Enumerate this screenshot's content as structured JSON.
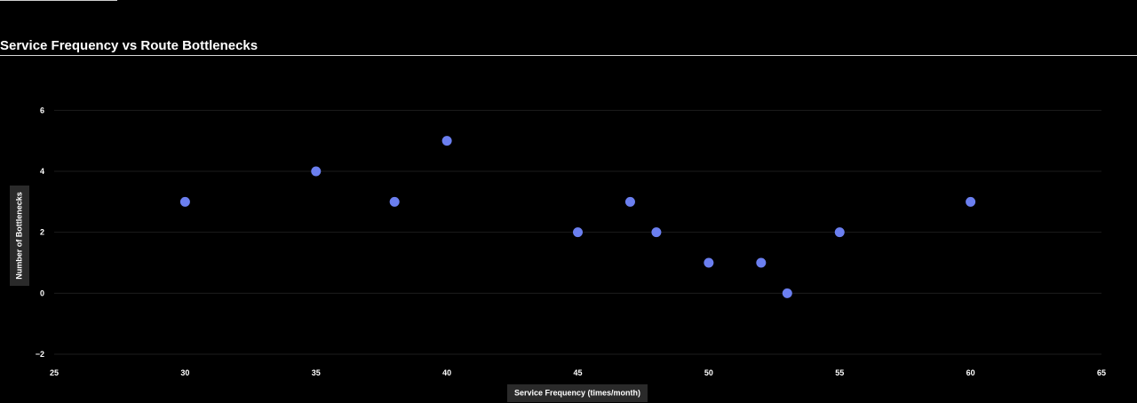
{
  "chart_data": {
    "type": "scatter",
    "title": "Service Frequency vs Route Bottlenecks",
    "xlabel": "Service Frequency (times/month)",
    "ylabel": "Number of Bottlenecks",
    "xlim": [
      25,
      65
    ],
    "ylim": [
      -2,
      7
    ],
    "xticks": [
      25,
      30,
      35,
      40,
      45,
      50,
      55,
      60,
      65
    ],
    "yticks": [
      -2,
      0,
      2,
      4,
      6
    ],
    "ytick_labels": [
      "−2",
      "0",
      "2",
      "4",
      "6"
    ],
    "grid": true,
    "point_color": "#6b7ff0",
    "points": [
      {
        "x": 30,
        "y": 3
      },
      {
        "x": 35,
        "y": 4
      },
      {
        "x": 38,
        "y": 3
      },
      {
        "x": 40,
        "y": 5
      },
      {
        "x": 45,
        "y": 2
      },
      {
        "x": 47,
        "y": 3
      },
      {
        "x": 48,
        "y": 2
      },
      {
        "x": 50,
        "y": 1
      },
      {
        "x": 52,
        "y": 1
      },
      {
        "x": 53,
        "y": 0
      },
      {
        "x": 55,
        "y": 2
      },
      {
        "x": 60,
        "y": 3
      }
    ]
  }
}
